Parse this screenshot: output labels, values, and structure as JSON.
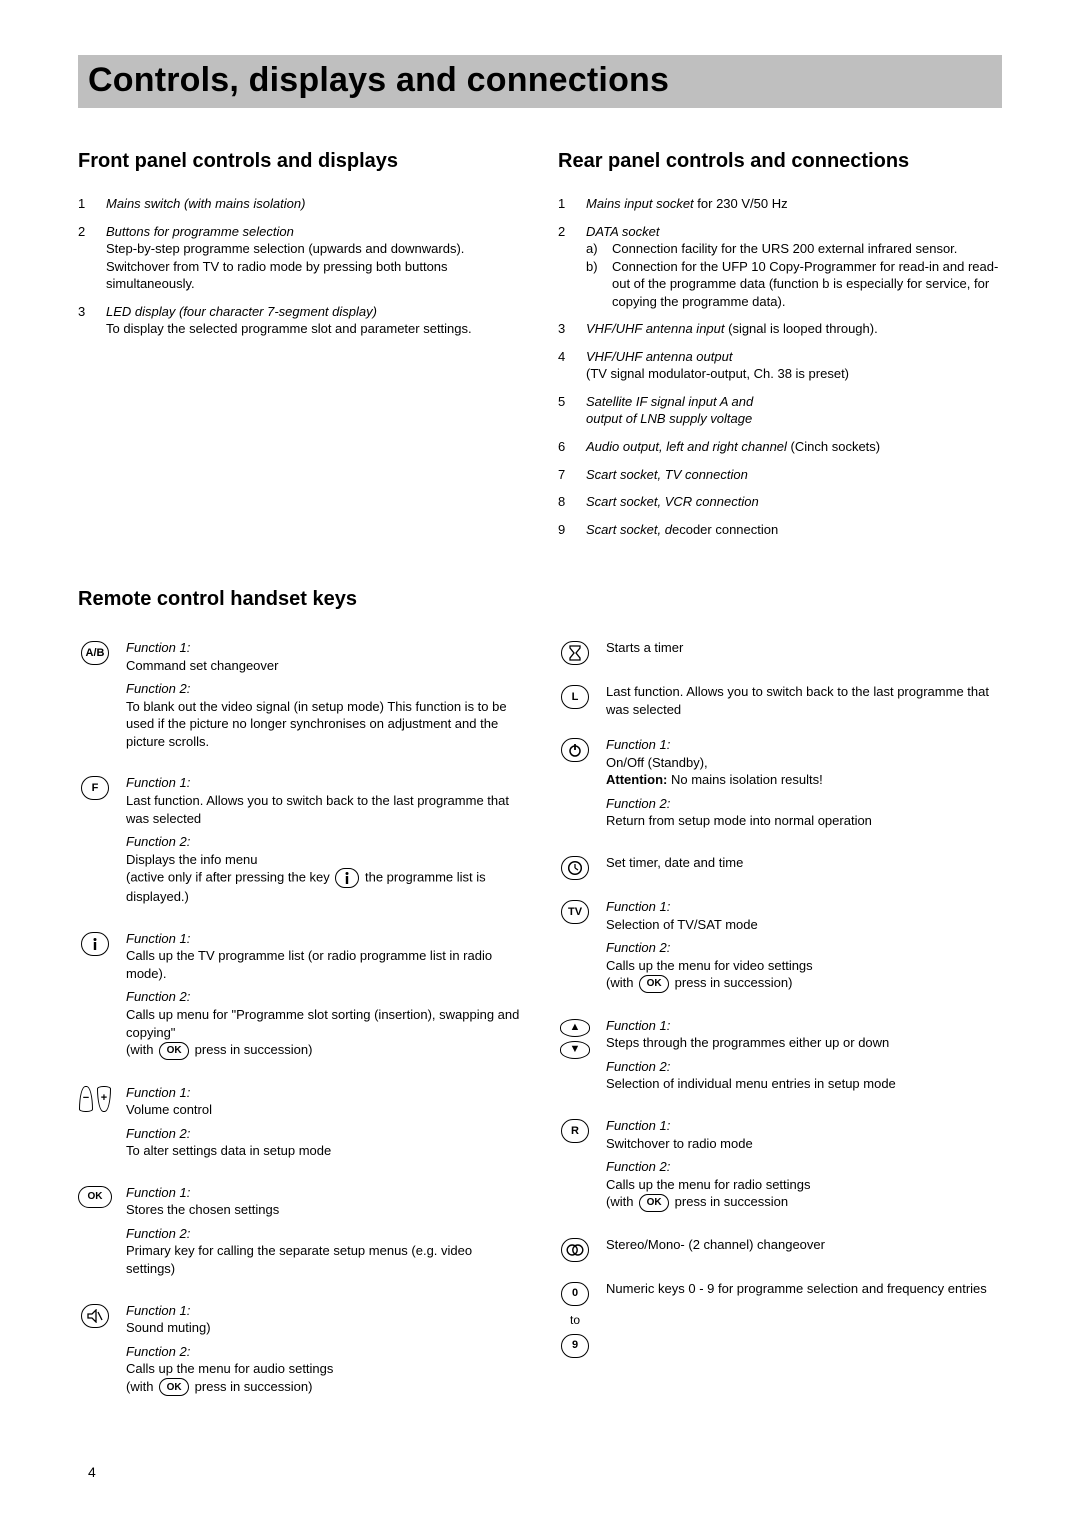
{
  "page_number": "4",
  "title": "Controls, displays and connections",
  "front": {
    "heading": "Front panel controls and displays",
    "items": [
      {
        "n": "1",
        "lead": "Mains switch (with mains isolation)",
        "text": ""
      },
      {
        "n": "2",
        "lead": "Buttons for programme selection",
        "text": "Step-by-step programme selection (upwards and downwards).\nSwitchover from TV to radio mode by pressing both buttons simultaneously."
      },
      {
        "n": "3",
        "lead": "LED display (four character 7-segment display)",
        "text": "To display the selected programme slot and parameter settings."
      }
    ]
  },
  "rear": {
    "heading": "Rear panel controls and connections",
    "items": [
      {
        "n": "1",
        "lead_ital": "Mains input socket",
        "tail": " for 230 V/50 Hz"
      },
      {
        "n": "2",
        "lead_ital": "DATA socket",
        "sub": [
          {
            "lab": "a)",
            "text": "Connection facility for the URS 200 external infrared sensor."
          },
          {
            "lab": "b)",
            "text": "Connection for the UFP 10 Copy-Programmer for read-in and read-out of the programme data (function b is especially for service, for copying the programme data)."
          }
        ]
      },
      {
        "n": "3",
        "lead_ital": "VHF/UHF antenna input",
        "tail": " (signal is looped through)."
      },
      {
        "n": "4",
        "lead_ital": "VHF/UHF antenna output",
        "text": "(TV signal modulator-output, Ch. 38 is preset)"
      },
      {
        "n": "5",
        "lead_ital": "Satellite IF signal input A and\noutput of LNB supply voltage"
      },
      {
        "n": "6",
        "lead_ital": "Audio output, left and right channel",
        "tail": " (Cinch sockets)"
      },
      {
        "n": "7",
        "lead_ital": "Scart socket, TV connection"
      },
      {
        "n": "8",
        "lead_ital": "Scart socket, VCR connection"
      },
      {
        "n": "9",
        "lead_ital": "Scart socket, d",
        "tail": "ecoder connection"
      }
    ]
  },
  "remote": {
    "heading": "Remote control handset keys",
    "left": [
      {
        "icon": "A/B",
        "func1_label": "Function 1:",
        "func1_text": "Command set changeover",
        "func2_label": "Function 2:",
        "func2_text": "To blank out the video signal (in setup mode) This function is to be used if the picture no longer synchronises on adjustment and the picture scrolls."
      },
      {
        "icon": "F",
        "func1_label": "Function 1:",
        "func1_text": "Last function. Allows you to switch back to the last programme that was selected",
        "func2_label": "Function 2:",
        "func2_text_pre": "Displays the info menu\n(active only if after pressing the key ",
        "inline_key": "i",
        "func2_text_post": " the programme list is displayed.)"
      },
      {
        "icon": "i",
        "func1_label": "Function 1:",
        "func1_text": "Calls up the TV programme list (or radio programme list in radio mode).",
        "func2_label": "Function 2:",
        "func2_text_pre": "Calls up menu for \"Programme slot sorting (insertion), swapping and copying\"\n(with ",
        "inline_key": "OK",
        "func2_text_post": " press in succession)"
      },
      {
        "icon": "vol",
        "func1_label": "Function 1:",
        "func1_text": "Volume control",
        "func2_label": "Function 2:",
        "func2_text": "To alter settings data in setup mode"
      },
      {
        "icon": "OK",
        "oval": true,
        "func1_label": "Function 1:",
        "func1_text": "Stores the chosen settings",
        "func2_label": "Function 2:",
        "func2_text": "Primary key for calling the separate setup menus (e.g. video settings)"
      },
      {
        "icon": "mute",
        "func1_label": "Function 1:",
        "func1_text": "Sound muting)",
        "func2_label": "Function 2:",
        "func2_text_pre": "Calls up the menu for audio settings\n(with ",
        "inline_key": "OK",
        "func2_text_post": " press in succession)"
      }
    ],
    "right": [
      {
        "icon": "timer",
        "plain_text": "Starts a timer"
      },
      {
        "icon": "L",
        "plain_text": "Last function. Allows you to switch back to the last programme that was selected"
      },
      {
        "icon": "power",
        "func1_label": "Function 1:",
        "func1_text_pre": "On/Off (Standby),\n",
        "attn_label": "Attention:",
        "attn_text": " No mains isolation results!",
        "func2_label": "Function 2:",
        "func2_text": "Return from setup mode into normal operation"
      },
      {
        "icon": "clock",
        "plain_text": "Set timer, date and time"
      },
      {
        "icon": "TV",
        "func1_label": "Function 1:",
        "func1_text": "Selection of TV/SAT mode",
        "func2_label": "Function 2:",
        "func2_text_pre": "Calls up the menu for video settings\n(with ",
        "inline_key": "OK",
        "func2_text_post": " press in succession)"
      },
      {
        "icon": "arrows",
        "func1_label": "Function 1:",
        "func1_text": "Steps through the programmes either up or down",
        "func2_label": "Function 2:",
        "func2_text": "Selection of individual menu entries in setup mode"
      },
      {
        "icon": "R",
        "func1_label": "Function 1:",
        "func1_text": "Switchover to radio mode",
        "func2_label": "Function 2:",
        "func2_text_pre": "Calls up the menu for radio settings\n(with ",
        "inline_key": "OK",
        "func2_text_post": " press in succession"
      },
      {
        "icon": "stereo",
        "plain_text": "Stereo/Mono- (2 channel) changeover"
      },
      {
        "icon": "numeric",
        "num_top": "0",
        "to": "to",
        "num_bot": "9",
        "plain_text": "Numeric keys 0 - 9 for programme selection and frequency entries"
      }
    ]
  }
}
